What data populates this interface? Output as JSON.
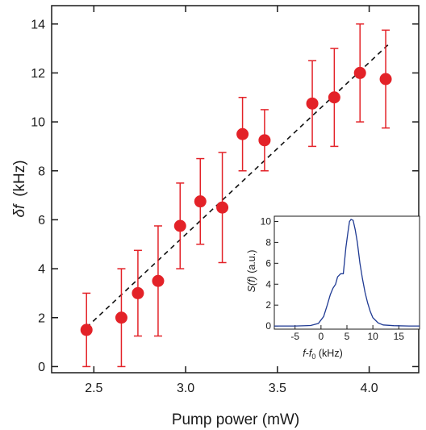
{
  "chart_data": [
    {
      "type": "scatter",
      "xlabel": "Pump power (mW)",
      "ylabel_symbol": "δf",
      "ylabel_unit": "(kHz)",
      "xlim": [
        2.27,
        4.27
      ],
      "ylim": [
        -0.25,
        14.75
      ],
      "xticks": [
        2.5,
        3.0,
        3.5,
        4.0
      ],
      "xtick_labels": [
        "2.5",
        "3.0",
        "3.5",
        "4.0"
      ],
      "yticks": [
        0,
        2,
        4,
        6,
        8,
        10,
        12,
        14
      ],
      "ytick_labels": [
        "0",
        "2",
        "4",
        "6",
        "8",
        "10",
        "12",
        "14"
      ],
      "grid": false,
      "marker_color": "#e32228",
      "errorbar_color": "#e32228",
      "points": [
        {
          "x": 2.46,
          "y": 1.5,
          "err_low": 1.5,
          "err_high": 1.5
        },
        {
          "x": 2.65,
          "y": 2.0,
          "err_low": 2.0,
          "err_high": 2.0
        },
        {
          "x": 2.74,
          "y": 3.0,
          "err_low": 1.75,
          "err_high": 1.75
        },
        {
          "x": 2.85,
          "y": 3.5,
          "err_low": 2.25,
          "err_high": 2.25
        },
        {
          "x": 2.97,
          "y": 5.75,
          "err_low": 1.75,
          "err_high": 1.75
        },
        {
          "x": 3.08,
          "y": 6.75,
          "err_low": 1.75,
          "err_high": 1.75
        },
        {
          "x": 3.2,
          "y": 6.5,
          "err_low": 2.25,
          "err_high": 2.25
        },
        {
          "x": 3.31,
          "y": 9.5,
          "err_low": 1.5,
          "err_high": 1.5
        },
        {
          "x": 3.43,
          "y": 9.25,
          "err_low": 1.25,
          "err_high": 1.25
        },
        {
          "x": 3.69,
          "y": 10.75,
          "err_low": 1.75,
          "err_high": 1.75
        },
        {
          "x": 3.81,
          "y": 11.0,
          "err_low": 2.0,
          "err_high": 2.0
        },
        {
          "x": 3.95,
          "y": 12.0,
          "err_low": 2.0,
          "err_high": 2.0
        },
        {
          "x": 4.09,
          "y": 11.75,
          "err_low": 2.0,
          "err_high": 2.0
        }
      ],
      "fit_line": {
        "style": "dashed",
        "color": "#111111",
        "x": [
          2.46,
          4.11
        ],
        "y": [
          1.6,
          13.2
        ]
      }
    },
    {
      "type": "line",
      "role": "inset",
      "xlabel": "f-f0 (kHz)",
      "xlabel_parts": {
        "a": "f",
        "dash": "-",
        "b": "f",
        "sub": "0",
        "unit": " (kHz)"
      },
      "ylabel": "S(f) (a.u.)",
      "ylabel_parts": {
        "a": "S(",
        "b": "f",
        "c": ")",
        "unit": " (a.u.)"
      },
      "xlim": [
        -9,
        19
      ],
      "ylim": [
        -0.3,
        10.5
      ],
      "xticks": [
        -5,
        0,
        5,
        10,
        15
      ],
      "xtick_labels": [
        "-5",
        "0",
        "5",
        "10",
        "15"
      ],
      "yticks": [
        0,
        2,
        4,
        6,
        8,
        10
      ],
      "ytick_labels": [
        "0",
        "2",
        "4",
        "6",
        "8",
        "10"
      ],
      "line_color": "#1f3a93",
      "x": [
        -9,
        -5,
        -2,
        -0.5,
        0.5,
        1.2,
        1.8,
        2.3,
        2.8,
        3.2,
        3.8,
        4.3,
        4.8,
        5.2,
        5.5,
        5.8,
        6.2,
        6.6,
        7.0,
        7.5,
        8.0,
        8.5,
        9.0,
        9.5,
        10.0,
        11.0,
        12.0,
        14.0,
        17.0,
        19.0
      ],
      "y": [
        0,
        0,
        0.05,
        0.25,
        0.9,
        2.0,
        3.0,
        3.6,
        4.0,
        4.7,
        5.0,
        5.0,
        7.5,
        9.0,
        10.0,
        10.2,
        10.1,
        9.2,
        8.0,
        6.0,
        4.5,
        3.2,
        2.2,
        1.4,
        0.8,
        0.3,
        0.1,
        0.03,
        0,
        0
      ]
    }
  ]
}
